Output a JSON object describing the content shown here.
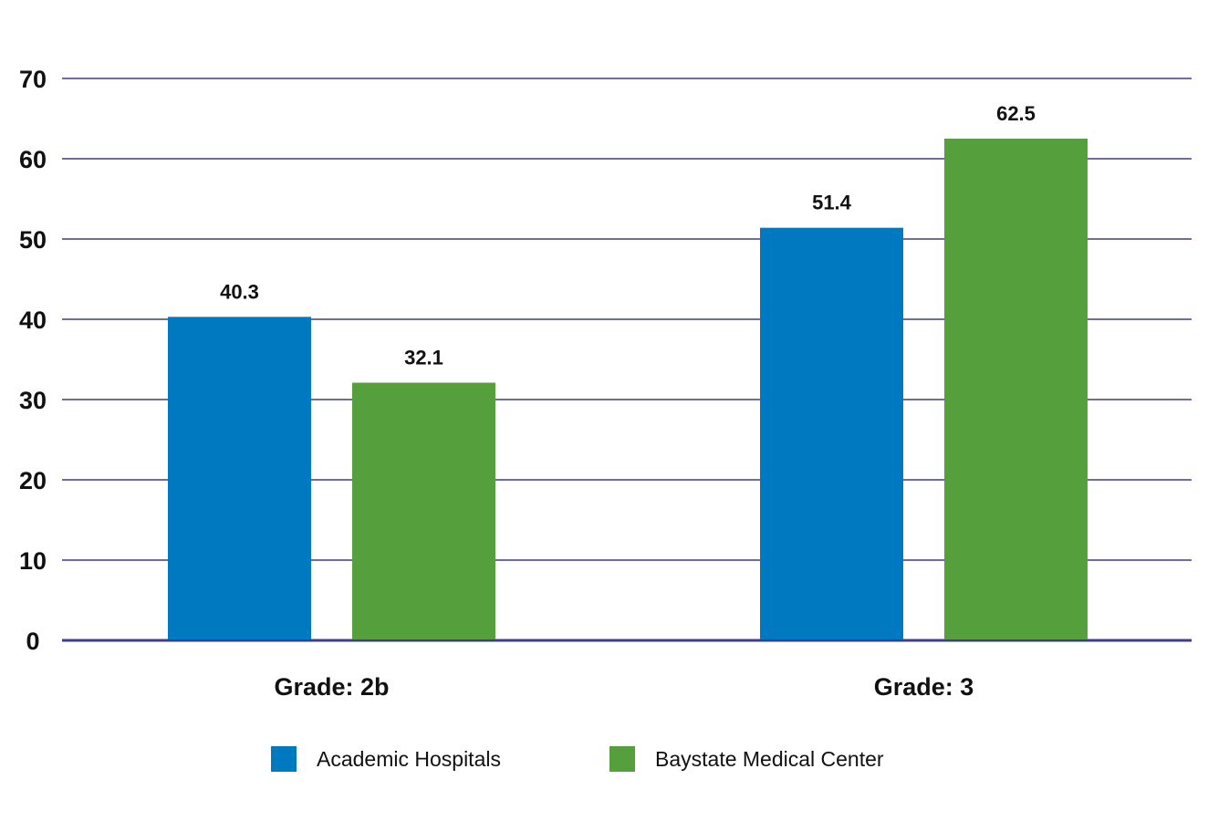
{
  "chart_data": {
    "type": "bar",
    "categories": [
      "Grade: 2b",
      "Grade: 3"
    ],
    "series": [
      {
        "name": "Academic Hospitals",
        "values": [
          40.3,
          51.4
        ],
        "color": "#0079c1"
      },
      {
        "name": "Baystate Medical Center",
        "values": [
          32.1,
          62.5
        ],
        "color": "#55a03c"
      }
    ],
    "data_labels": [
      [
        "40.3",
        "51.4"
      ],
      [
        "32.1",
        "62.5"
      ]
    ],
    "title": "",
    "xlabel": "",
    "ylabel": "",
    "ylim": [
      0,
      70
    ],
    "yticks": [
      "0",
      "10",
      "20",
      "30",
      "40",
      "50",
      "60",
      "70"
    ],
    "grid": true,
    "grid_color": "#3f3a94",
    "legend_position": "bottom"
  }
}
